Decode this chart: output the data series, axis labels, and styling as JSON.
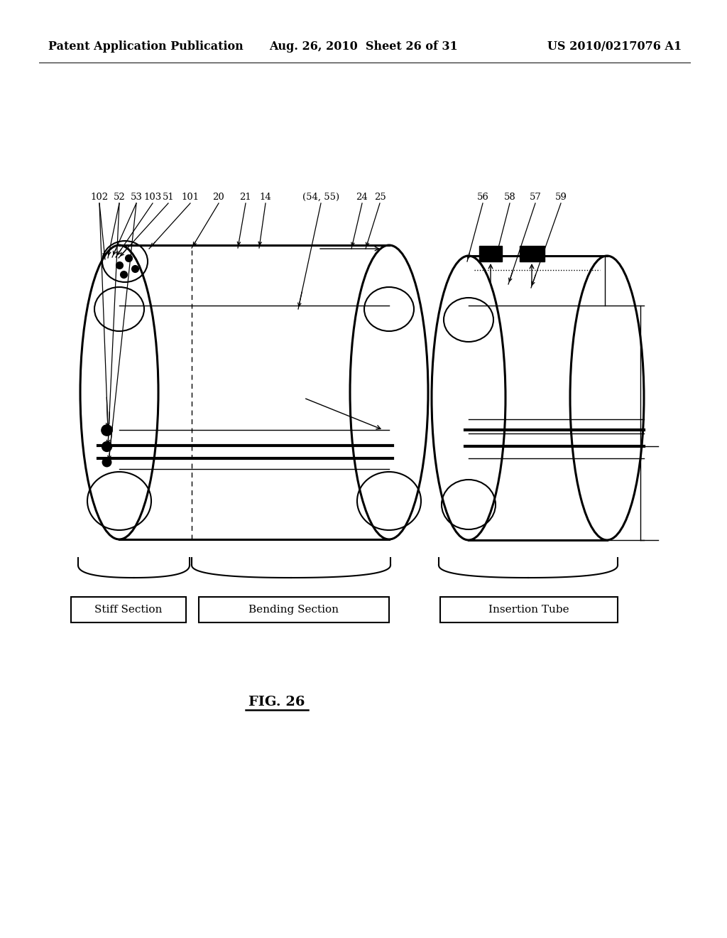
{
  "bg_color": "#ffffff",
  "header_left": "Patent Application Publication",
  "header_mid": "Aug. 26, 2010  Sheet 26 of 31",
  "header_right": "US 2010/0217076 A1",
  "figure_label": "FIG. 26",
  "top_labels_left": [
    [
      140,
      "102"
    ],
    [
      168,
      "52"
    ],
    [
      192,
      "53"
    ],
    [
      215,
      "103"
    ],
    [
      237,
      "51"
    ],
    [
      268,
      "101"
    ],
    [
      308,
      "20"
    ],
    [
      346,
      "21"
    ],
    [
      374,
      "14"
    ],
    [
      452,
      "(54, 55)"
    ],
    [
      510,
      "24"
    ],
    [
      535,
      "25"
    ]
  ],
  "top_labels_right": [
    [
      680,
      "56"
    ],
    [
      718,
      "58"
    ],
    [
      754,
      "57"
    ],
    [
      790,
      "59"
    ]
  ],
  "section_labels": [
    [
      100,
      262,
      "Stiff Section"
    ],
    [
      280,
      548,
      "Bending Section"
    ],
    [
      620,
      870,
      "Insertion Tube"
    ]
  ]
}
